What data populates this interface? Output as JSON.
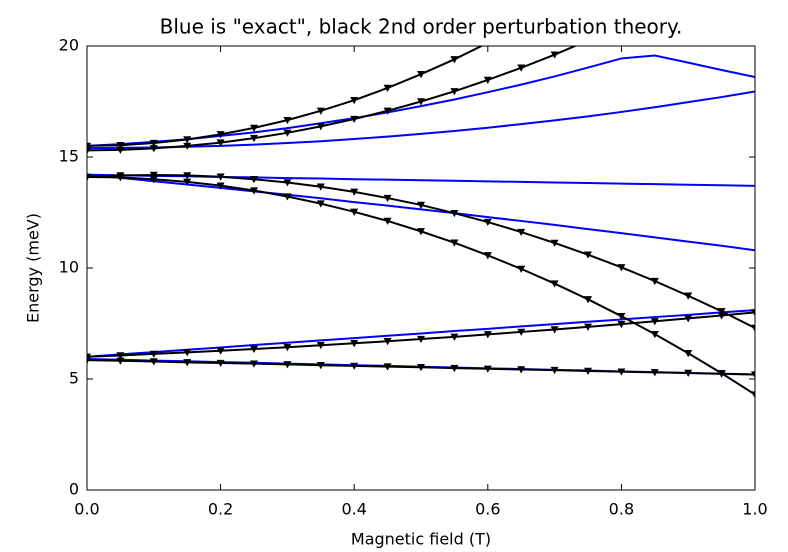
{
  "chart_data": {
    "type": "line",
    "title": "Blue is \"exact\", black 2nd order perturbation theory.",
    "x_label": "Magnetic field (T)",
    "y_label": "Energy (meV)",
    "x": [
      0,
      0.05,
      0.1,
      0.15,
      0.2,
      0.25,
      0.3,
      0.35,
      0.4,
      0.45,
      0.5,
      0.55,
      0.6,
      0.65,
      0.7,
      0.75,
      0.8,
      0.85,
      0.9,
      0.95,
      1.0
    ],
    "xlim": [
      0,
      1
    ],
    "ylim": [
      0,
      20
    ],
    "xticks": [
      {
        "value": 0,
        "label": "0.0"
      },
      {
        "value": 0.2,
        "label": "0.2"
      },
      {
        "value": 0.4,
        "label": "0.4"
      },
      {
        "value": 0.6,
        "label": "0.6"
      },
      {
        "value": 0.8,
        "label": "0.8"
      },
      {
        "value": 1,
        "label": "1.0"
      }
    ],
    "yticks": [
      0,
      5,
      10,
      15,
      20
    ],
    "series": [
      {
        "color": "#0000ff",
        "values": [
          15.5,
          15.58,
          15.68,
          15.8,
          15.95,
          16.11,
          16.3,
          16.52,
          16.75,
          17.01,
          17.29,
          17.59,
          17.92,
          18.26,
          18.63,
          19.03,
          19.44,
          19.57,
          19.25,
          18.92,
          18.6
        ]
      },
      {
        "color": "#0000ff",
        "values": [
          15.4,
          15.41,
          15.43,
          15.46,
          15.5,
          15.56,
          15.63,
          15.71,
          15.81,
          15.92,
          16.04,
          16.17,
          16.32,
          16.48,
          16.65,
          16.83,
          17.03,
          17.24,
          17.47,
          17.7,
          17.95
        ]
      },
      {
        "color": "#0000ff",
        "values": [
          14.2,
          14.18,
          14.15,
          14.13,
          14.1,
          14.08,
          14.05,
          14.03,
          14.0,
          13.98,
          13.95,
          13.93,
          13.9,
          13.88,
          13.85,
          13.83,
          13.8,
          13.78,
          13.75,
          13.73,
          13.7
        ]
      },
      {
        "color": "#0000ff",
        "values": [
          14.2,
          14.06,
          13.91,
          13.76,
          13.61,
          13.45,
          13.3,
          13.14,
          12.97,
          12.81,
          12.64,
          12.47,
          12.29,
          12.12,
          11.94,
          11.75,
          11.57,
          11.38,
          11.19,
          11.0,
          10.8
        ]
      },
      {
        "color": "#0000ff",
        "values": [
          6.0,
          6.11,
          6.21,
          6.32,
          6.42,
          6.53,
          6.63,
          6.74,
          6.84,
          6.95,
          7.05,
          7.16,
          7.26,
          7.37,
          7.47,
          7.58,
          7.68,
          7.79,
          7.89,
          8.0,
          8.1
        ]
      },
      {
        "color": "#0000ff",
        "values": [
          5.9,
          5.87,
          5.83,
          5.8,
          5.76,
          5.73,
          5.69,
          5.66,
          5.62,
          5.59,
          5.55,
          5.52,
          5.48,
          5.45,
          5.41,
          5.38,
          5.34,
          5.31,
          5.27,
          5.24,
          5.2
        ]
      },
      {
        "color": "#000000",
        "marker": "v",
        "values": [
          15.5,
          15.53,
          15.63,
          15.79,
          16.02,
          16.31,
          16.66,
          17.08,
          17.56,
          18.11,
          18.73,
          19.4,
          20.14,
          null,
          null,
          null,
          null,
          null,
          null,
          null,
          null
        ]
      },
      {
        "color": "#000000",
        "marker": "v",
        "values": [
          15.3,
          15.32,
          15.39,
          15.5,
          15.65,
          15.85,
          16.09,
          16.38,
          16.71,
          17.08,
          17.5,
          17.96,
          18.47,
          19.02,
          19.61,
          20.25,
          null,
          null,
          null,
          null,
          null
        ]
      },
      {
        "color": "#000000",
        "marker": "v",
        "values": [
          14.1,
          14.17,
          14.19,
          14.17,
          14.11,
          14.0,
          13.85,
          13.66,
          13.43,
          13.15,
          12.84,
          12.47,
          12.07,
          11.62,
          11.13,
          10.6,
          10.03,
          9.41,
          8.75,
          8.05,
          7.3
        ]
      },
      {
        "color": "#000000",
        "marker": "v",
        "values": [
          14.1,
          14.08,
          14.0,
          13.88,
          13.71,
          13.49,
          13.22,
          12.9,
          12.53,
          12.12,
          11.65,
          11.14,
          10.57,
          9.96,
          9.3,
          8.59,
          7.83,
          7.02,
          6.16,
          5.26,
          4.3
        ]
      },
      {
        "color": "#000000",
        "marker": "v",
        "values": [
          6.0,
          6.06,
          6.13,
          6.2,
          6.27,
          6.35,
          6.43,
          6.52,
          6.61,
          6.7,
          6.8,
          6.9,
          7.01,
          7.12,
          7.23,
          7.35,
          7.47,
          7.6,
          7.73,
          7.86,
          8.0
        ]
      },
      {
        "color": "#000000",
        "marker": "v",
        "values": [
          5.85,
          5.82,
          5.79,
          5.75,
          5.72,
          5.69,
          5.66,
          5.62,
          5.59,
          5.56,
          5.53,
          5.49,
          5.46,
          5.43,
          5.4,
          5.36,
          5.33,
          5.3,
          5.27,
          5.23,
          5.2
        ]
      }
    ]
  }
}
